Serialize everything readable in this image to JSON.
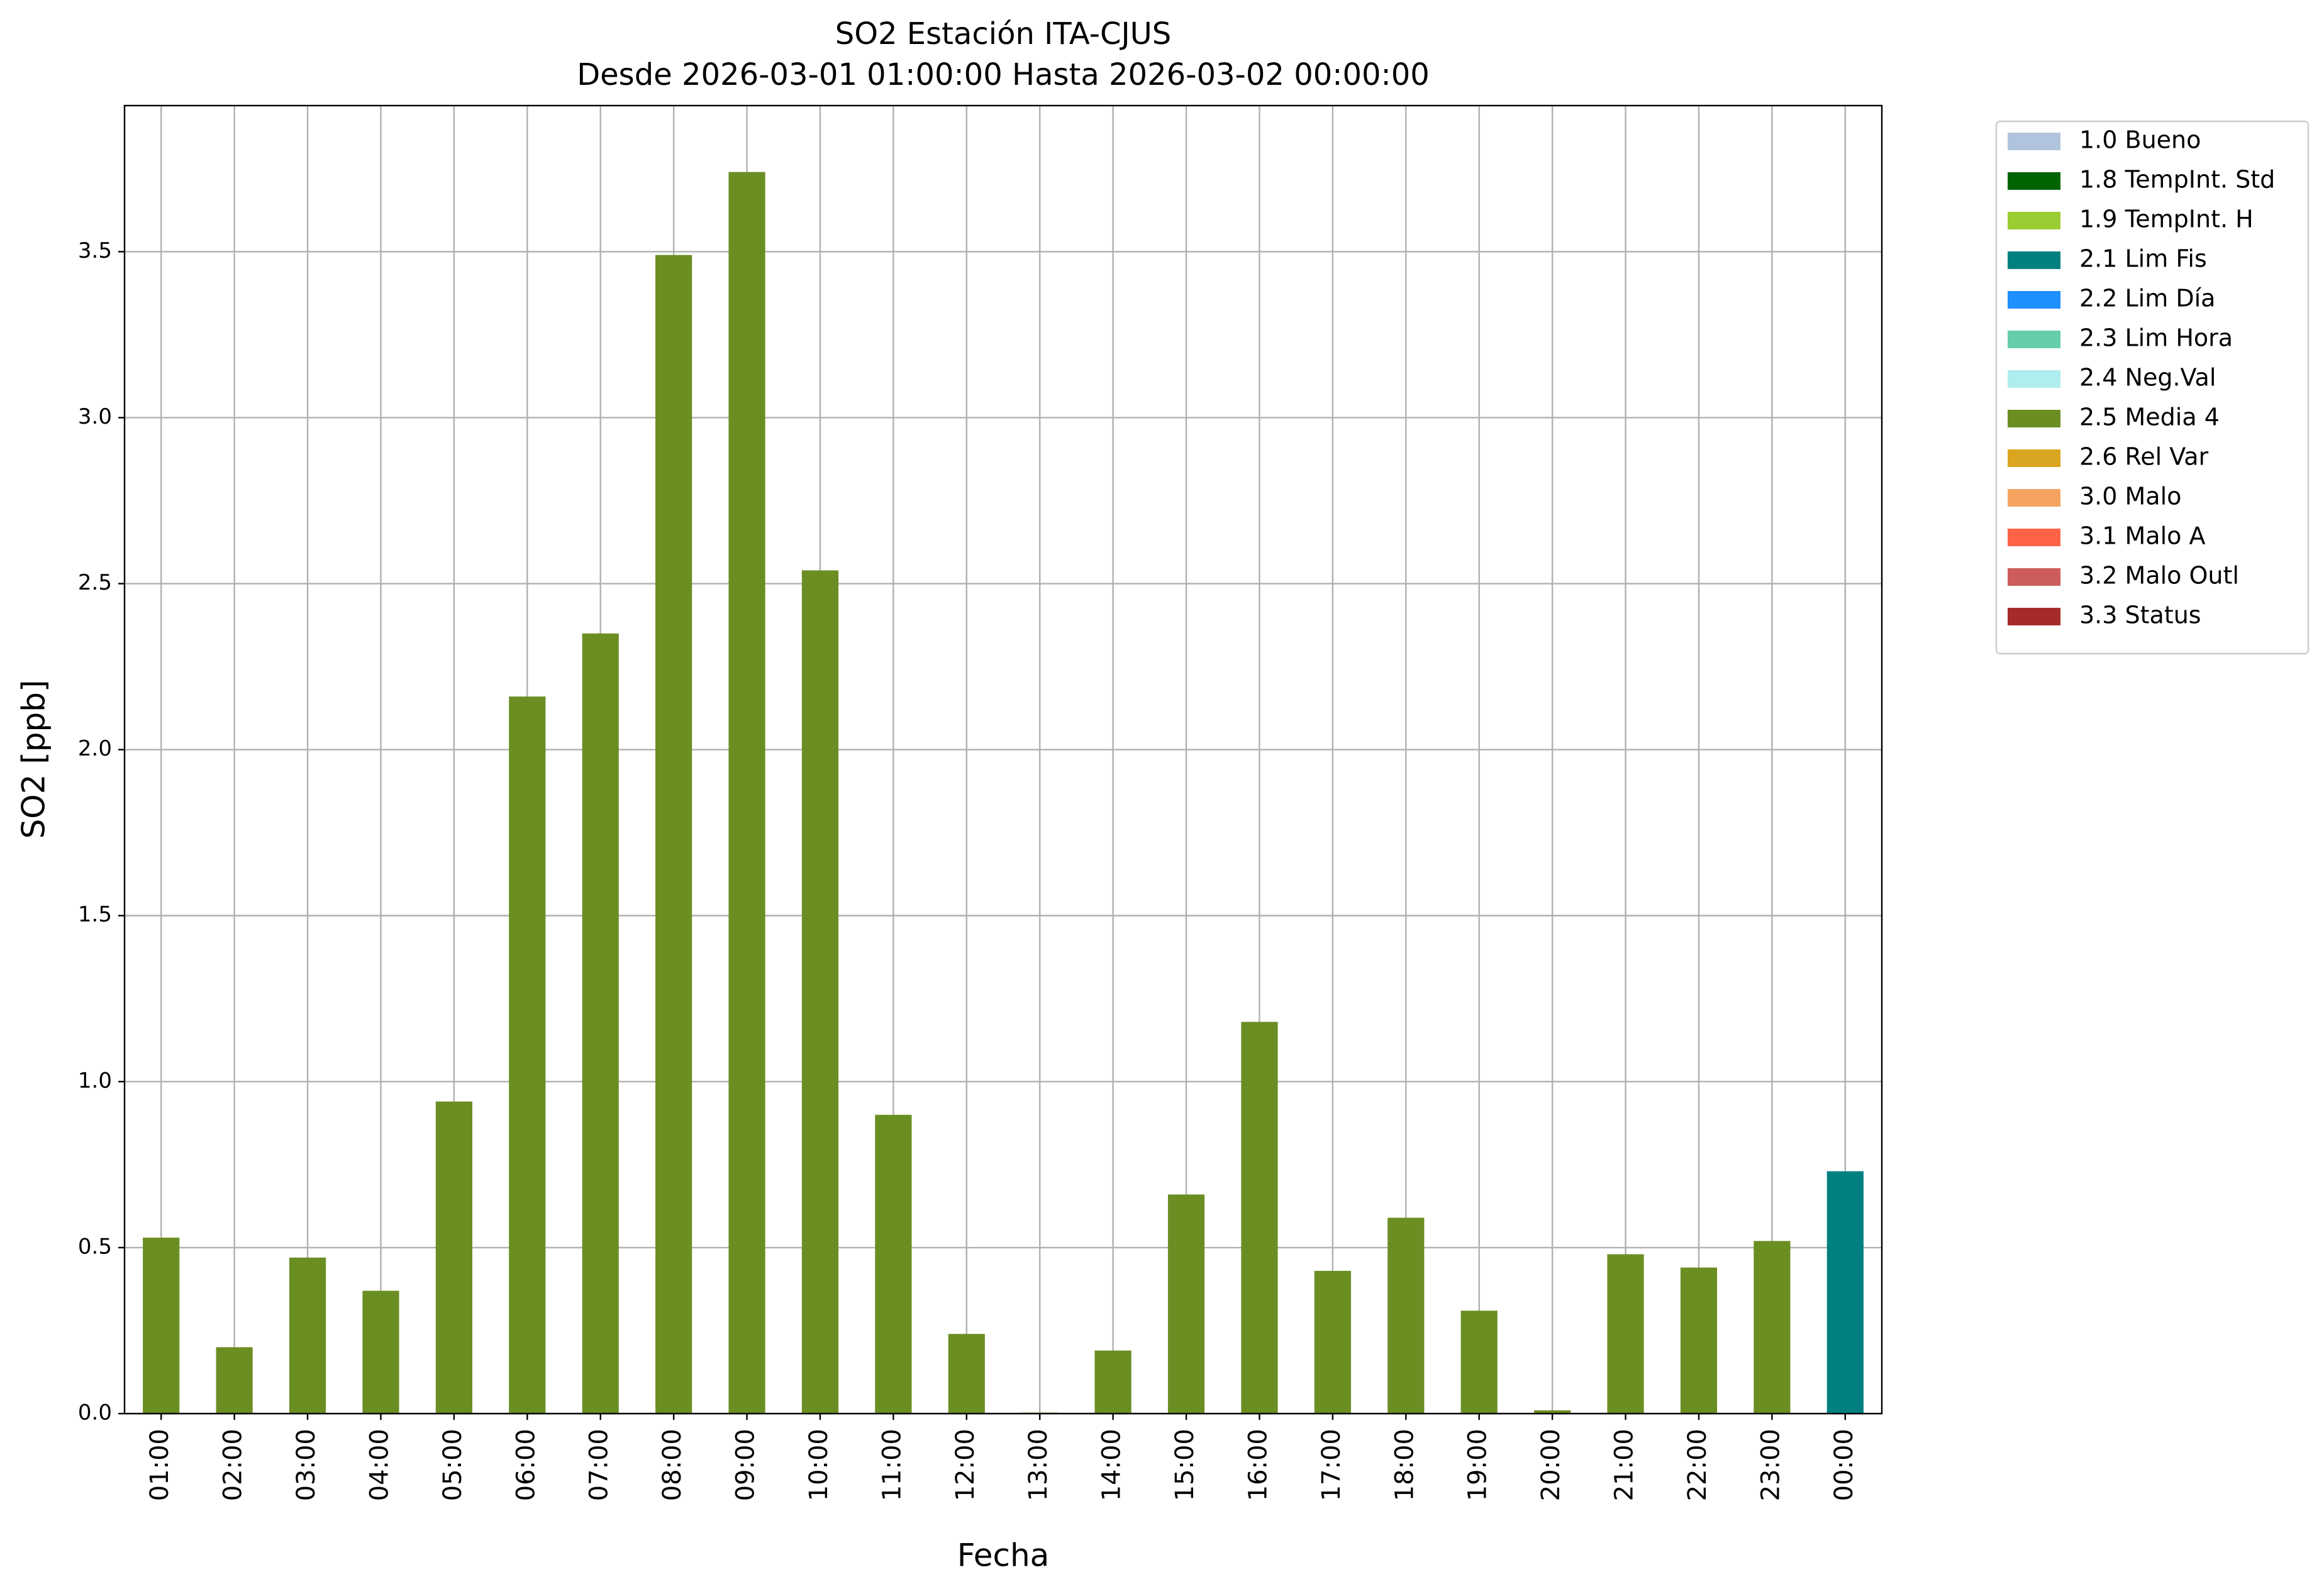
{
  "chart_data": {
    "type": "stacked_bar",
    "title": "SO2 Estación ITA-CJUS",
    "subtitle": "Desde 2026-03-01 01:00:00 Hasta 2026-03-02 00:00:00",
    "x_label": "Fecha",
    "y_label": "SO2 [ppb]",
    "categories": [
      "01:00",
      "02:00",
      "03:00",
      "04:00",
      "05:00",
      "06:00",
      "07:00",
      "08:00",
      "09:00",
      "10:00",
      "11:00",
      "12:00",
      "13:00",
      "14:00",
      "15:00",
      "16:00",
      "17:00",
      "18:00",
      "19:00",
      "20:00",
      "21:00",
      "22:00",
      "23:00",
      "00:00"
    ],
    "series": [
      {
        "name": "1.0 Bueno",
        "color": "#b0c4de",
        "values": [
          null,
          null,
          null,
          null,
          null,
          null,
          null,
          null,
          null,
          null,
          null,
          null,
          null,
          null,
          null,
          null,
          null,
          null,
          null,
          null,
          null,
          null,
          null,
          null
        ]
      },
      {
        "name": "1.8 TempInt. Std",
        "color": "#006400",
        "values": [
          null,
          null,
          null,
          null,
          null,
          null,
          null,
          null,
          null,
          null,
          null,
          null,
          null,
          null,
          null,
          null,
          null,
          null,
          null,
          null,
          null,
          null,
          null,
          null
        ]
      },
      {
        "name": "1.9 TempInt. H",
        "color": "#9acd32",
        "values": [
          null,
          null,
          null,
          null,
          null,
          null,
          null,
          null,
          null,
          null,
          null,
          null,
          null,
          null,
          null,
          null,
          null,
          null,
          null,
          null,
          null,
          null,
          null,
          null
        ]
      },
      {
        "name": "2.1 Lim Fis",
        "color": "#008080",
        "values": [
          null,
          null,
          null,
          null,
          null,
          null,
          null,
          null,
          null,
          null,
          null,
          null,
          null,
          null,
          null,
          null,
          null,
          null,
          null,
          null,
          null,
          null,
          null,
          0.73
        ]
      },
      {
        "name": "2.2 Lim Día",
        "color": "#1e90ff",
        "values": [
          null,
          null,
          null,
          null,
          null,
          null,
          null,
          null,
          null,
          null,
          null,
          null,
          null,
          null,
          null,
          null,
          null,
          null,
          null,
          null,
          null,
          null,
          null,
          null
        ]
      },
      {
        "name": "2.3 Lim Hora",
        "color": "#66cdaa",
        "values": [
          null,
          null,
          null,
          null,
          null,
          null,
          null,
          null,
          null,
          null,
          null,
          null,
          null,
          null,
          null,
          null,
          null,
          null,
          null,
          null,
          null,
          null,
          null,
          null
        ]
      },
      {
        "name": "2.4 Neg.Val",
        "color": "#afeeee",
        "values": [
          null,
          null,
          null,
          null,
          null,
          null,
          null,
          null,
          null,
          null,
          null,
          null,
          null,
          null,
          null,
          null,
          null,
          null,
          null,
          null,
          null,
          null,
          null,
          null
        ]
      },
      {
        "name": "2.5 Media 4",
        "color": "#6b8e23",
        "values": [
          0.53,
          0.2,
          0.47,
          0.37,
          0.94,
          2.16,
          2.35,
          3.49,
          3.74,
          2.54,
          0.9,
          0.24,
          0.003,
          0.19,
          0.66,
          1.18,
          0.43,
          0.59,
          0.31,
          0.01,
          0.48,
          0.44,
          0.52,
          null
        ]
      },
      {
        "name": "2.6 Rel Var",
        "color": "#daa520",
        "values": [
          null,
          null,
          null,
          null,
          null,
          null,
          null,
          null,
          null,
          null,
          null,
          null,
          null,
          null,
          null,
          null,
          null,
          null,
          null,
          null,
          null,
          null,
          null,
          null
        ]
      },
      {
        "name": "3.0 Malo",
        "color": "#f4a460",
        "values": [
          null,
          null,
          null,
          null,
          null,
          null,
          null,
          null,
          null,
          null,
          null,
          null,
          null,
          null,
          null,
          null,
          null,
          null,
          null,
          null,
          null,
          null,
          null,
          null
        ]
      },
      {
        "name": "3.1 Malo A",
        "color": "#ff6347",
        "values": [
          null,
          null,
          null,
          null,
          null,
          null,
          null,
          null,
          null,
          null,
          null,
          null,
          null,
          null,
          null,
          null,
          null,
          null,
          null,
          null,
          null,
          null,
          null,
          null
        ]
      },
      {
        "name": "3.2 Malo Outl",
        "color": "#cd5c5c",
        "values": [
          null,
          null,
          null,
          null,
          null,
          null,
          null,
          null,
          null,
          null,
          null,
          null,
          null,
          null,
          null,
          null,
          null,
          null,
          null,
          null,
          null,
          null,
          null,
          null
        ]
      },
      {
        "name": "3.3 Status",
        "color": "#a52a2a",
        "values": [
          null,
          null,
          null,
          null,
          null,
          null,
          null,
          null,
          null,
          null,
          null,
          null,
          null,
          null,
          null,
          null,
          null,
          null,
          null,
          null,
          null,
          null,
          null,
          null
        ]
      }
    ],
    "ylim": [
      0,
      3.94
    ],
    "yticks": [
      {
        "value": 0,
        "label": "0.0"
      },
      0.5,
      {
        "value": 1,
        "label": "1.0"
      },
      1.5,
      {
        "value": 2,
        "label": "2.0"
      },
      2.5,
      {
        "value": 3,
        "label": "3.0"
      },
      3.5
    ],
    "grid": true
  }
}
